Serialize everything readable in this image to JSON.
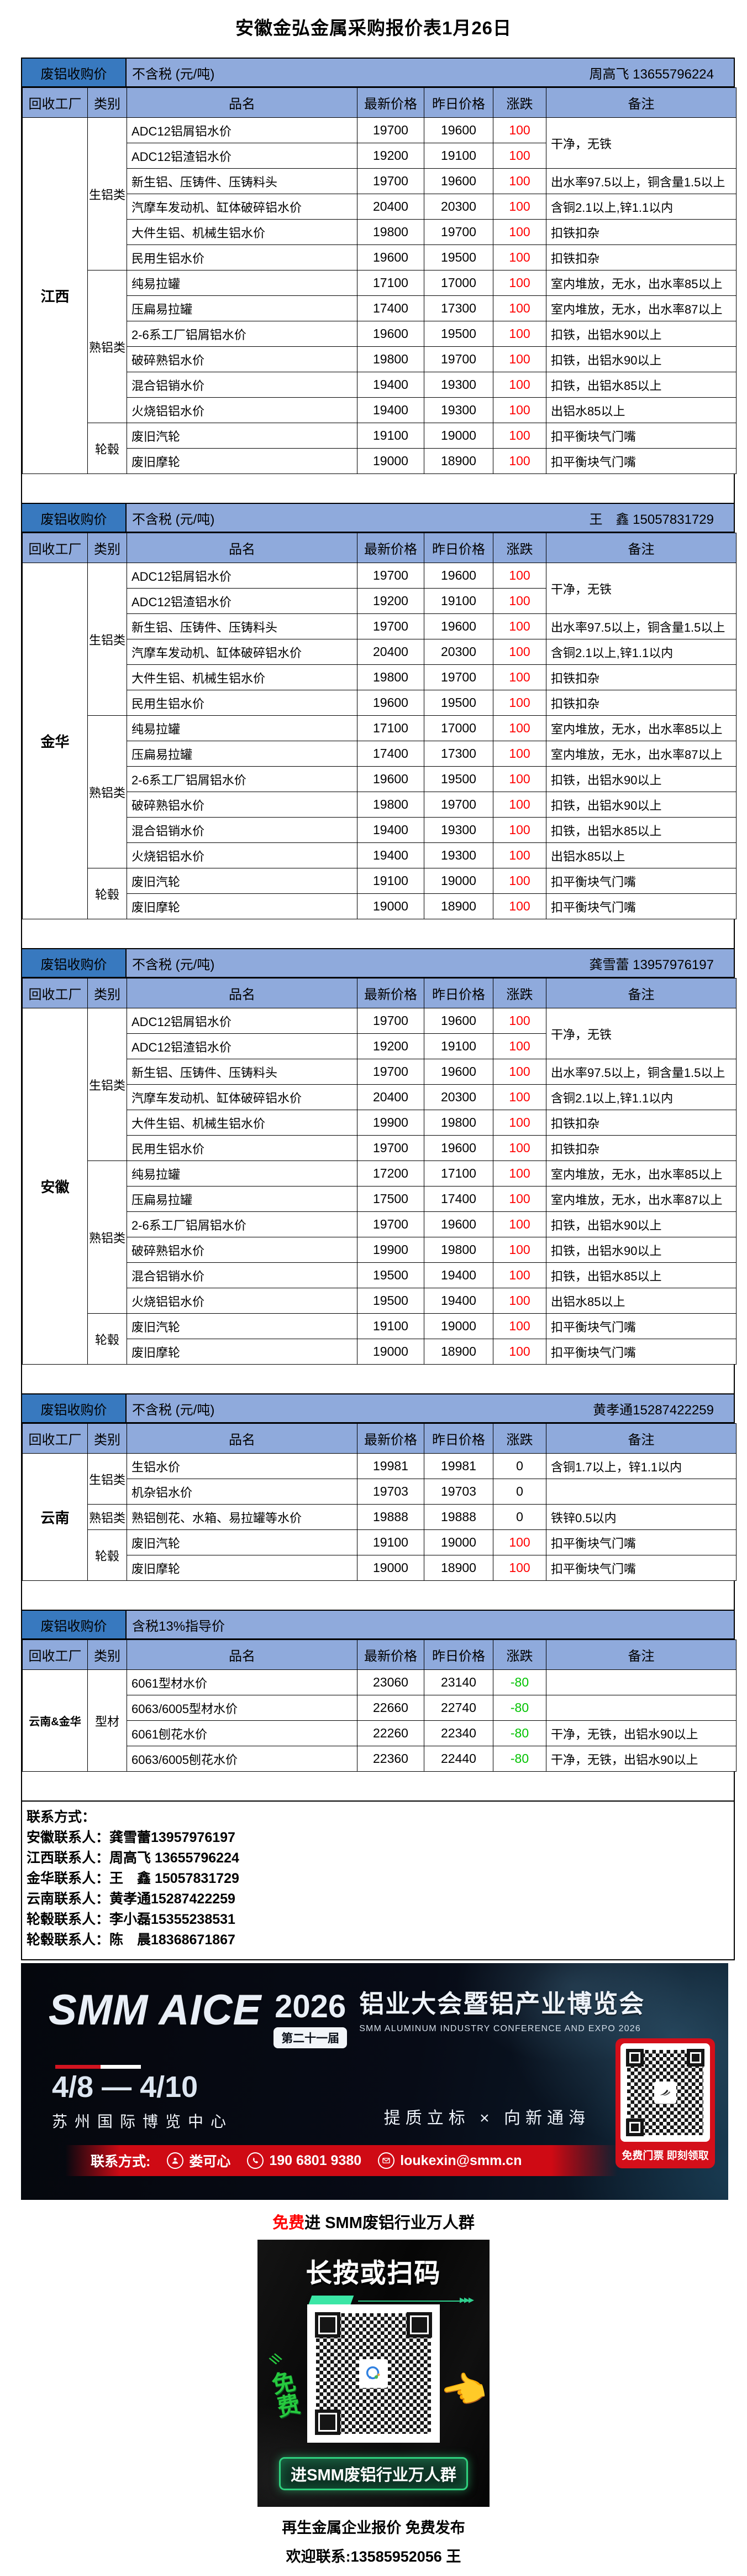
{
  "page": {
    "title": "安徽金弘金属采购报价表1月26日"
  },
  "colors": {
    "header_dark_blue": "#3879bf",
    "header_light_blue": "#8faadc",
    "up_red": "#ff0000",
    "down_green": "#00c300",
    "banner_red": "#d40f1a",
    "poster_green": "#2fd07e"
  },
  "table": {
    "header_label": "废铝收购价",
    "columns": [
      "回收工厂",
      "类别",
      "品名",
      "最新价格",
      "昨日价格",
      "涨跌",
      "备注"
    ]
  },
  "sections": [
    {
      "region": "江西",
      "tax_note": "不含税 (元/吨)",
      "contact": "周高飞 13655796224",
      "groups": [
        {
          "category": "生铝类",
          "rows": [
            {
              "name": "ADC12铝屑铝水价",
              "latest": "19700",
              "prev": "19600",
              "change": "100",
              "trend": "up",
              "note": "干净，无铁",
              "note_rowspan": 2
            },
            {
              "name": "ADC12铝渣铝水价",
              "latest": "19200",
              "prev": "19100",
              "change": "100",
              "trend": "up",
              "note": null
            },
            {
              "name": "新生铝、压铸件、压铸料头",
              "latest": "19700",
              "prev": "19600",
              "change": "100",
              "trend": "up",
              "note": "出水率97.5以上，铜含量1.5以上"
            },
            {
              "name": "汽摩车发动机、缸体破碎铝水价",
              "latest": "20400",
              "prev": "20300",
              "change": "100",
              "trend": "up",
              "note": "含铜2.1以上,锌1.1以内"
            },
            {
              "name": "大件生铝、机械生铝水价",
              "latest": "19800",
              "prev": "19700",
              "change": "100",
              "trend": "up",
              "note": "扣铁扣杂"
            },
            {
              "name": "民用生铝水价",
              "latest": "19600",
              "prev": "19500",
              "change": "100",
              "trend": "up",
              "note": "扣铁扣杂"
            }
          ]
        },
        {
          "category": "熟铝类",
          "rows": [
            {
              "name": "纯易拉罐",
              "latest": "17100",
              "prev": "17000",
              "change": "100",
              "trend": "up",
              "note": "室内堆放，无水，出水率85以上"
            },
            {
              "name": "压扁易拉罐",
              "latest": "17400",
              "prev": "17300",
              "change": "100",
              "trend": "up",
              "note": "室内堆放，无水，出水率87以上"
            },
            {
              "name": "2-6系工厂铝屑铝水价",
              "latest": "19600",
              "prev": "19500",
              "change": "100",
              "trend": "up",
              "note": "扣铁，出铝水90以上"
            },
            {
              "name": "破碎熟铝水价",
              "latest": "19800",
              "prev": "19700",
              "change": "100",
              "trend": "up",
              "note": "扣铁，出铝水90以上"
            },
            {
              "name": "混合铝销水价",
              "latest": "19400",
              "prev": "19300",
              "change": "100",
              "trend": "up",
              "note": "扣铁，出铝水85以上"
            },
            {
              "name": "火烧铝铝水价",
              "latest": "19400",
              "prev": "19300",
              "change": "100",
              "trend": "up",
              "note": "出铝水85以上"
            }
          ]
        },
        {
          "category": "轮毂",
          "rows": [
            {
              "name": "废旧汽轮",
              "latest": "19100",
              "prev": "19000",
              "change": "100",
              "trend": "up",
              "note": "扣平衡块气门嘴"
            },
            {
              "name": "废旧摩轮",
              "latest": "19000",
              "prev": "18900",
              "change": "100",
              "trend": "up",
              "note": "扣平衡块气门嘴"
            }
          ]
        }
      ]
    },
    {
      "region": "金华",
      "tax_note": "不含税 (元/吨)",
      "contact": "王　鑫 15057831729",
      "groups": [
        {
          "category": "生铝类",
          "rows": [
            {
              "name": "ADC12铝屑铝水价",
              "latest": "19700",
              "prev": "19600",
              "change": "100",
              "trend": "up",
              "note": "干净，无铁",
              "note_rowspan": 2
            },
            {
              "name": "ADC12铝渣铝水价",
              "latest": "19200",
              "prev": "19100",
              "change": "100",
              "trend": "up",
              "note": null
            },
            {
              "name": "新生铝、压铸件、压铸料头",
              "latest": "19700",
              "prev": "19600",
              "change": "100",
              "trend": "up",
              "note": "出水率97.5以上，铜含量1.5以上"
            },
            {
              "name": "汽摩车发动机、缸体破碎铝水价",
              "latest": "20400",
              "prev": "20300",
              "change": "100",
              "trend": "up",
              "note": "含铜2.1以上,锌1.1以内"
            },
            {
              "name": "大件生铝、机械生铝水价",
              "latest": "19800",
              "prev": "19700",
              "change": "100",
              "trend": "up",
              "note": "扣铁扣杂"
            },
            {
              "name": "民用生铝水价",
              "latest": "19600",
              "prev": "19500",
              "change": "100",
              "trend": "up",
              "note": "扣铁扣杂"
            }
          ]
        },
        {
          "category": "熟铝类",
          "rows": [
            {
              "name": "纯易拉罐",
              "latest": "17100",
              "prev": "17000",
              "change": "100",
              "trend": "up",
              "note": "室内堆放，无水，出水率85以上"
            },
            {
              "name": "压扁易拉罐",
              "latest": "17400",
              "prev": "17300",
              "change": "100",
              "trend": "up",
              "note": "室内堆放，无水，出水率87以上"
            },
            {
              "name": "2-6系工厂铝屑铝水价",
              "latest": "19600",
              "prev": "19500",
              "change": "100",
              "trend": "up",
              "note": "扣铁，出铝水90以上"
            },
            {
              "name": "破碎熟铝水价",
              "latest": "19800",
              "prev": "19700",
              "change": "100",
              "trend": "up",
              "note": "扣铁，出铝水90以上"
            },
            {
              "name": "混合铝销水价",
              "latest": "19400",
              "prev": "19300",
              "change": "100",
              "trend": "up",
              "note": "扣铁，出铝水85以上"
            },
            {
              "name": "火烧铝铝水价",
              "latest": "19400",
              "prev": "19300",
              "change": "100",
              "trend": "up",
              "note": "出铝水85以上"
            }
          ]
        },
        {
          "category": "轮毂",
          "rows": [
            {
              "name": "废旧汽轮",
              "latest": "19100",
              "prev": "19000",
              "change": "100",
              "trend": "up",
              "note": "扣平衡块气门嘴"
            },
            {
              "name": "废旧摩轮",
              "latest": "19000",
              "prev": "18900",
              "change": "100",
              "trend": "up",
              "note": "扣平衡块气门嘴"
            }
          ]
        }
      ]
    },
    {
      "region": "安徽",
      "tax_note": "不含税 (元/吨)",
      "contact": "龚雪蕾 13957976197",
      "groups": [
        {
          "category": "生铝类",
          "rows": [
            {
              "name": "ADC12铝屑铝水价",
              "latest": "19700",
              "prev": "19600",
              "change": "100",
              "trend": "up",
              "note": "干净，无铁",
              "note_rowspan": 2
            },
            {
              "name": "ADC12铝渣铝水价",
              "latest": "19200",
              "prev": "19100",
              "change": "100",
              "trend": "up",
              "note": null
            },
            {
              "name": "新生铝、压铸件、压铸料头",
              "latest": "19700",
              "prev": "19600",
              "change": "100",
              "trend": "up",
              "note": "出水率97.5以上，铜含量1.5以上"
            },
            {
              "name": "汽摩车发动机、缸体破碎铝水价",
              "latest": "20400",
              "prev": "20300",
              "change": "100",
              "trend": "up",
              "note": "含铜2.1以上,锌1.1以内"
            },
            {
              "name": "大件生铝、机械生铝水价",
              "latest": "19900",
              "prev": "19800",
              "change": "100",
              "trend": "up",
              "note": "扣铁扣杂"
            },
            {
              "name": "民用生铝水价",
              "latest": "19700",
              "prev": "19600",
              "change": "100",
              "trend": "up",
              "note": "扣铁扣杂"
            }
          ]
        },
        {
          "category": "熟铝类",
          "rows": [
            {
              "name": "纯易拉罐",
              "latest": "17200",
              "prev": "17100",
              "change": "100",
              "trend": "up",
              "note": "室内堆放，无水，出水率85以上"
            },
            {
              "name": "压扁易拉罐",
              "latest": "17500",
              "prev": "17400",
              "change": "100",
              "trend": "up",
              "note": "室内堆放，无水，出水率87以上"
            },
            {
              "name": "2-6系工厂铝屑铝水价",
              "latest": "19700",
              "prev": "19600",
              "change": "100",
              "trend": "up",
              "note": "扣铁，出铝水90以上"
            },
            {
              "name": "破碎熟铝水价",
              "latest": "19900",
              "prev": "19800",
              "change": "100",
              "trend": "up",
              "note": "扣铁，出铝水90以上"
            },
            {
              "name": "混合铝销水价",
              "latest": "19500",
              "prev": "19400",
              "change": "100",
              "trend": "up",
              "note": "扣铁，出铝水85以上"
            },
            {
              "name": "火烧铝铝水价",
              "latest": "19500",
              "prev": "19400",
              "change": "100",
              "trend": "up",
              "note": "出铝水85以上"
            }
          ]
        },
        {
          "category": "轮毂",
          "rows": [
            {
              "name": "废旧汽轮",
              "latest": "19100",
              "prev": "19000",
              "change": "100",
              "trend": "up",
              "note": "扣平衡块气门嘴"
            },
            {
              "name": "废旧摩轮",
              "latest": "19000",
              "prev": "18900",
              "change": "100",
              "trend": "up",
              "note": "扣平衡块气门嘴"
            }
          ]
        }
      ]
    },
    {
      "region": "云南",
      "tax_note": "不含税 (元/吨)",
      "contact": "黄孝通15287422259",
      "groups": [
        {
          "category": "生铝类",
          "rows": [
            {
              "name": "生铝水价",
              "latest": "19981",
              "prev": "19981",
              "change": "0",
              "trend": "flat",
              "note": "含铜1.7以上，锌1.1以内"
            },
            {
              "name": "机杂铝水价",
              "latest": "19703",
              "prev": "19703",
              "change": "0",
              "trend": "flat",
              "note": ""
            }
          ]
        },
        {
          "category": "熟铝类",
          "rows": [
            {
              "name": "熟铝刨花、水箱、易拉罐等水价",
              "latest": "19888",
              "prev": "19888",
              "change": "0",
              "trend": "flat",
              "note": "铁锌0.5以内"
            }
          ]
        },
        {
          "category": "轮毂",
          "rows": [
            {
              "name": "废旧汽轮",
              "latest": "19100",
              "prev": "19000",
              "change": "100",
              "trend": "up",
              "note": "扣平衡块气门嘴"
            },
            {
              "name": "废旧摩轮",
              "latest": "19000",
              "prev": "18900",
              "change": "100",
              "trend": "up",
              "note": "扣平衡块气门嘴"
            }
          ]
        }
      ]
    },
    {
      "region": "云南&金华",
      "tax_note": "含税13%指导价",
      "contact": "",
      "groups": [
        {
          "category": "型材",
          "rows": [
            {
              "name": "6061型材水价",
              "latest": "23060",
              "prev": "23140",
              "change": "-80",
              "trend": "down",
              "note": ""
            },
            {
              "name": "6063/6005型材水价",
              "latest": "22660",
              "prev": "22740",
              "change": "-80",
              "trend": "down",
              "note": ""
            },
            {
              "name": "6061刨花水价",
              "latest": "22260",
              "prev": "22340",
              "change": "-80",
              "trend": "down",
              "note": "干净，无铁，出铝水90以上"
            },
            {
              "name": "6063/6005刨花水价",
              "latest": "22360",
              "prev": "22440",
              "change": "-80",
              "trend": "down",
              "note": "干净，无铁，出铝水90以上"
            }
          ]
        }
      ]
    }
  ],
  "contacts": {
    "title": "联系方式：",
    "lines": [
      "安徽联系人：龚雪蕾13957976197",
      "江西联系人：周高飞 13655796224",
      "金华联系人：王　鑫 15057831729",
      "云南联系人：黄孝通15287422259",
      "轮毂联系人：李小磊15355238531",
      "轮毂联系人：陈　晨18368671867"
    ]
  },
  "banner": {
    "logo": "SMM AICE",
    "year": "2026",
    "edition": "第二十一届",
    "title_cn": "铝业大会暨铝产业博览会",
    "title_en": "SMM ALUMINUM INDUSTRY CONFERENCE AND EXPO 2026",
    "dates": "4/8 — 4/10",
    "venue": "苏州国际博览中心",
    "slogan": "提质立标 × 向新通海",
    "contact_label": "联系方式:",
    "contact_name": "娄可心",
    "phone": "190 6801 9380",
    "email": "loukexin@smm.cn",
    "ticket": "免费门票 即刻领取"
  },
  "promo": {
    "free": "免费",
    "rest": "进 SMM废铝行业万人群"
  },
  "poster": {
    "title": "长按或扫码",
    "free_vertical": "免费",
    "arrow_tips": "▶▶▶",
    "button": "进SMM废铝行业万人群",
    "hand": "👈"
  },
  "footer": {
    "line1": "再生金属企业报价 免费发布",
    "line2": "欢迎联系:13585952056 王"
  }
}
